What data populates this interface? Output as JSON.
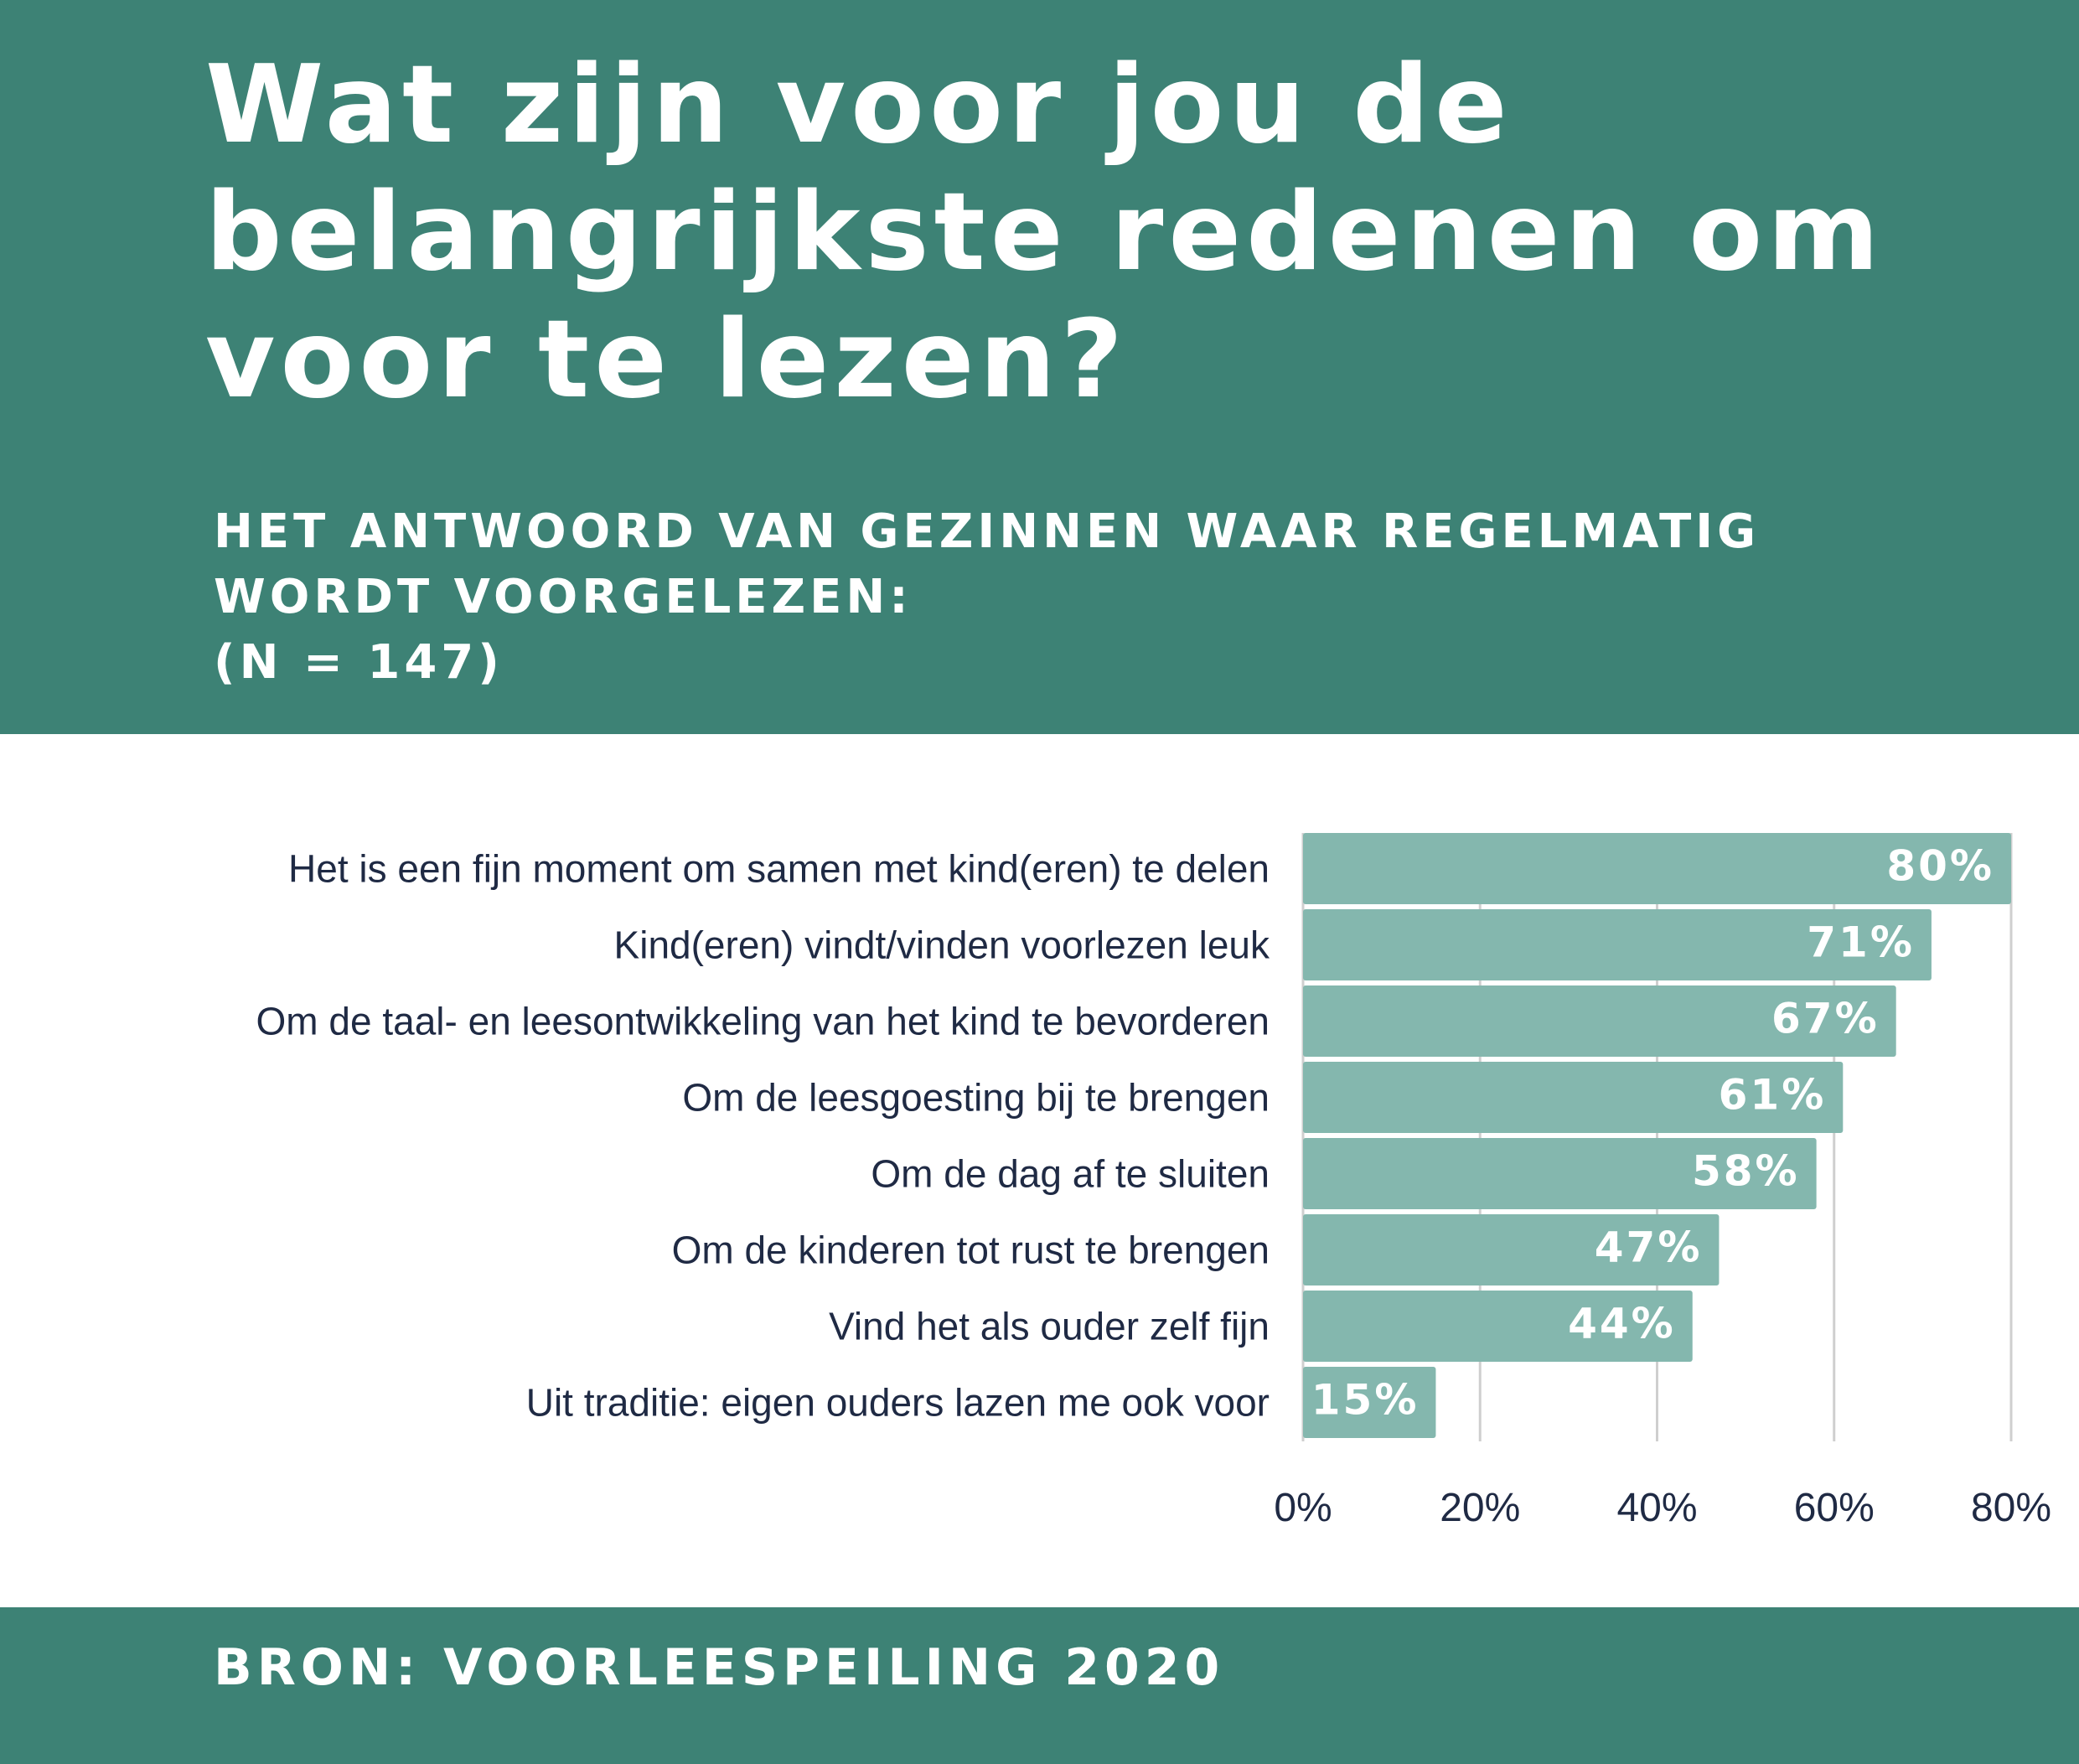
{
  "header": {
    "title": "Wat zijn voor jou de belangrijkste redenen om voor te lezen?",
    "subtitle_lines": [
      "HET ANTWOORD VAN GEZINNEN WAAR REGELMATIG",
      "WORDT VOORGELEZEN:",
      "(N = 147)"
    ]
  },
  "colors": {
    "header_background": "#3d8275",
    "bar": "#84b7ae",
    "label_text": "#1f2a44",
    "grid": "#cfcfcf"
  },
  "chart_data": {
    "type": "bar",
    "orientation": "horizontal",
    "categories": [
      "Het is een fijn moment om samen met kind(eren) te delen",
      "Kind(eren) vindt/vinden voorlezen leuk",
      "Om de taal- en leesontwikkeling van het kind te bevorderen",
      "Om de leesgoesting bij te brengen",
      "Om de dag af te sluiten",
      "Om de kinderen tot rust te brengen",
      "Vind het als ouder zelf fijn",
      "Uit traditie: eigen ouders lazen me ook voor"
    ],
    "values": [
      80,
      71,
      67,
      61,
      58,
      47,
      44,
      15
    ],
    "value_labels": [
      "80%",
      "71%",
      "67%",
      "61%",
      "58%",
      "47%",
      "44%",
      "15%"
    ],
    "xlim": [
      0,
      80
    ],
    "x_ticks": [
      0,
      20,
      40,
      60,
      80
    ],
    "x_tick_labels": [
      "0%",
      "20%",
      "40%",
      "60%",
      "80%"
    ],
    "grid": true,
    "legend": "none"
  },
  "footer": {
    "source": "BRON: VOORLEESPEILING 2020"
  }
}
